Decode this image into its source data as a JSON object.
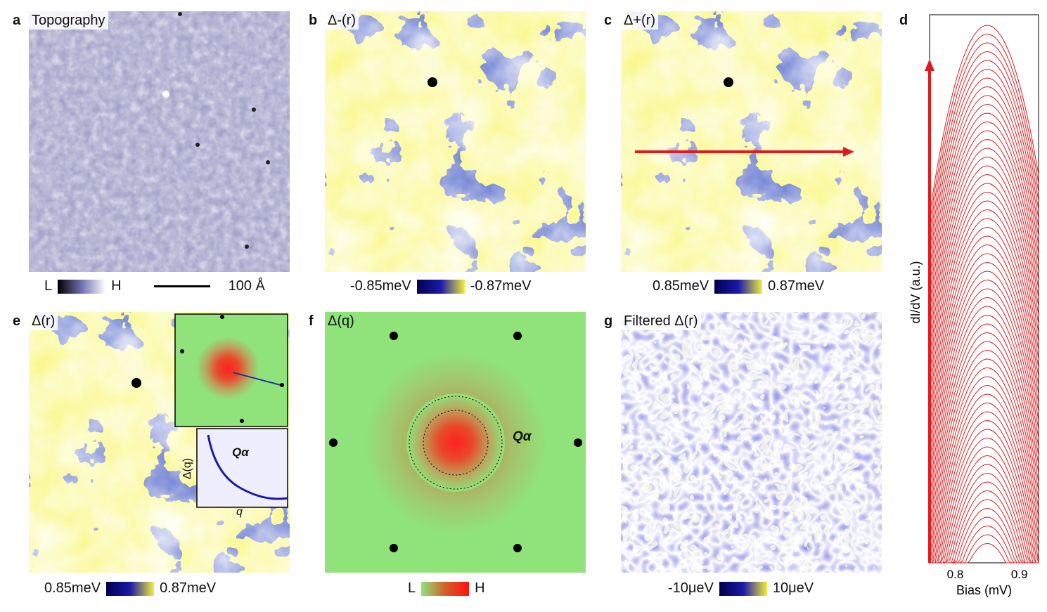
{
  "panels": {
    "a": {
      "letter": "a",
      "title": "Topography",
      "cbar_low": "L",
      "cbar_high": "H",
      "scale_label": "100 Å"
    },
    "b": {
      "letter": "b",
      "title": "Δ-(r)",
      "cbar_low": "-0.85meV",
      "cbar_high": "-0.87meV"
    },
    "c": {
      "letter": "c",
      "title": "Δ+(r)",
      "cbar_low": "0.85meV",
      "cbar_high": "0.87meV"
    },
    "d": {
      "letter": "d",
      "ylabel": "dI/dV (a.u.)",
      "xlabel": "Bias (mV)",
      "xticks": [
        "0.8",
        "0.9"
      ]
    },
    "e": {
      "letter": "e",
      "title": "Δ(r)",
      "cbar_low": "0.85meV",
      "cbar_high": "0.87meV",
      "inset_ylabel": "Δ(q)",
      "inset_xlabel": "q",
      "inset_marker": "Qα"
    },
    "f": {
      "letter": "f",
      "title": "Δ(q)",
      "cbar_low": "L",
      "cbar_high": "H",
      "marker": "Qα"
    },
    "g": {
      "letter": "g",
      "title": "Filtered Δ(r)",
      "cbar_low": "-10μeV",
      "cbar_high": "10μeV"
    }
  },
  "chart_data": {
    "type": "line",
    "title": "",
    "xlabel": "Bias (mV)",
    "ylabel": "dI/dV (a.u.)",
    "xlim": [
      0.76,
      0.93
    ],
    "description_series_count": 60,
    "peak_bias": 0.85
  },
  "colors": {
    "yellow": "#f2ee3a",
    "blue": "#1a1aa8",
    "red": "#e31a1c",
    "green": "#8fe37a",
    "topo": "#9b9bc4"
  }
}
